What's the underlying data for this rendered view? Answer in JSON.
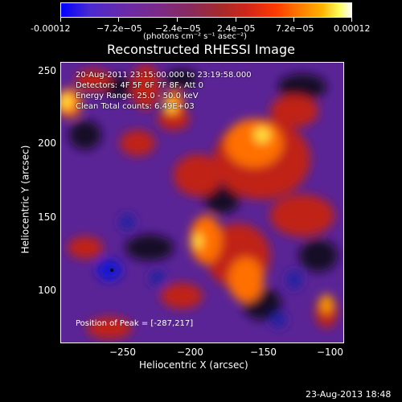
{
  "colorbar": {
    "ticks": [
      "-0.00012",
      "−7.2e−05",
      "−2.4e−05",
      "2.4e−05",
      "7.2e−05",
      "0.00012"
    ],
    "unit": "(photons cm⁻² s⁻¹ asec⁻²)"
  },
  "title": "Reconstructed RHESSI Image",
  "info": {
    "time_range": "20-Aug-2011 23:15:00.000 to 23:19:58.000",
    "detectors": "Detectors: 4F 5F 6F 7F 8F, Att 0",
    "energy": "Energy Range: 25.0 - 50.0 keV",
    "clean": "Clean    Total counts: 6.49E+03"
  },
  "peak": "Position of Peak = [-287,217]",
  "axes": {
    "xlabel": "Heliocentric X (arcsec)",
    "ylabel": "Heliocentric Y (arcsec)",
    "xticks": [
      "−250",
      "−200",
      "−150",
      "−100"
    ],
    "yticks": [
      "250",
      "200",
      "150",
      "100"
    ]
  },
  "footer": "23-Aug-2013 18:48",
  "colors": {
    "background": "#000000",
    "purple": "#6a2aa8",
    "blue": "#1a1aff",
    "red": "#d0261a",
    "orange": "#ff7a00",
    "yellow": "#ffff60"
  }
}
